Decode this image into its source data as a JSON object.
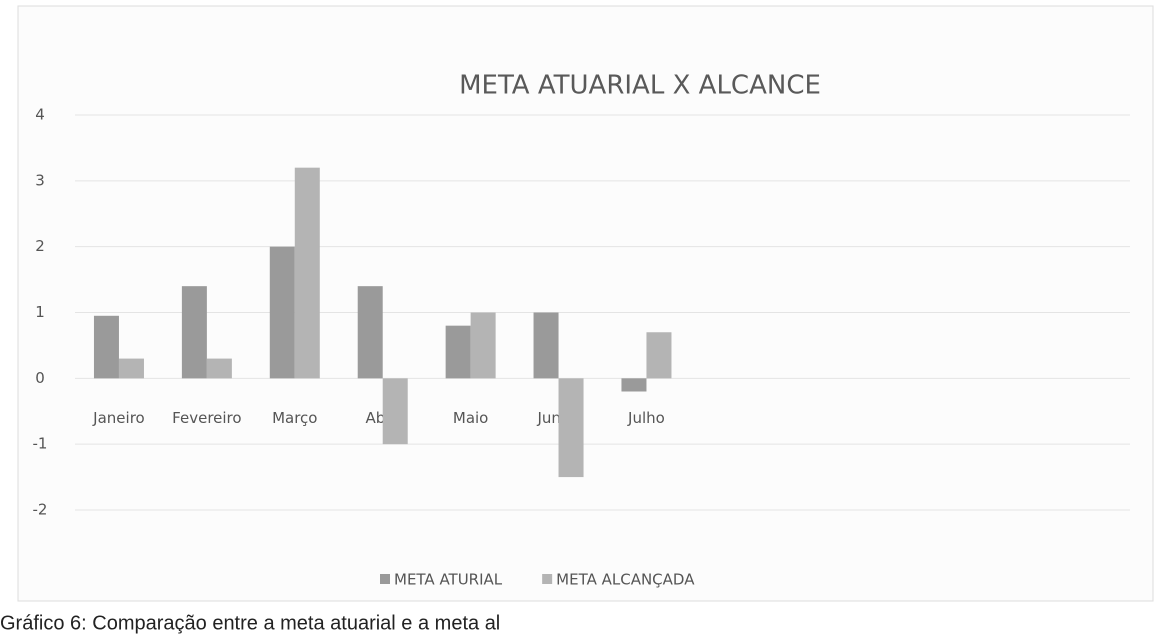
{
  "chart_data": {
    "type": "bar",
    "title": "META ATUARIAL X ALCANCE",
    "categories": [
      "Janeiro",
      "Fevereiro",
      "Março",
      "Abril",
      "Maio",
      "Junho",
      "Julho",
      null,
      null,
      null,
      null,
      null
    ],
    "series": [
      {
        "name": "META ATURIAL",
        "color": "#9a9a9a",
        "values": [
          0.95,
          1.4,
          2.0,
          1.4,
          0.8,
          1.0,
          -0.2,
          null,
          null,
          null,
          null,
          null
        ]
      },
      {
        "name": "META ALCANÇADA",
        "color": "#b4b4b4",
        "values": [
          0.3,
          0.3,
          3.2,
          -1.0,
          1.0,
          -1.5,
          0.7,
          null,
          null,
          null,
          null,
          null
        ]
      }
    ],
    "ylim": [
      -2,
      4
    ],
    "yticks": [
      -2,
      -1,
      0,
      1,
      2,
      3,
      4
    ],
    "grid": true,
    "legend": "bottom",
    "caption": "Gráfico 6: Comparação entre a meta atuarial e a meta al"
  }
}
